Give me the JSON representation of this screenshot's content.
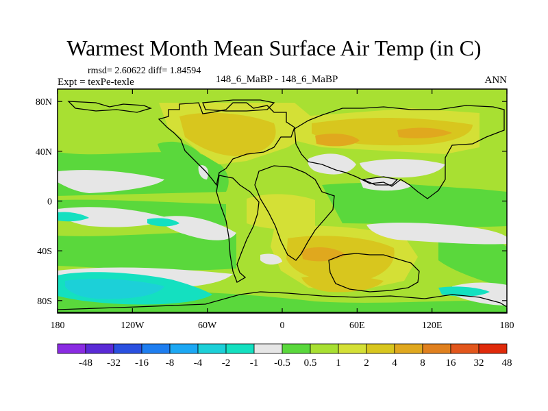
{
  "title": "Warmest Month Mean Surface Air Temp (in C)",
  "stats": "rmsd= 2.60622 diff= 1.84594",
  "expt": "Expt = texPe-texle",
  "subtitle": "148_6_MaBP - 148_6_MaBP",
  "season": "ANN",
  "map": {
    "x_ticks": [
      {
        "lon": -180,
        "label": "180"
      },
      {
        "lon": -120,
        "label": "120W"
      },
      {
        "lon": -60,
        "label": "60W"
      },
      {
        "lon": 0,
        "label": "0"
      },
      {
        "lon": 60,
        "label": "60E"
      },
      {
        "lon": 120,
        "label": "120E"
      },
      {
        "lon": 180,
        "label": "180"
      }
    ],
    "y_ticks": [
      {
        "lat": 80,
        "label": "80N"
      },
      {
        "lat": 40,
        "label": "40N"
      },
      {
        "lat": 0,
        "label": "0"
      },
      {
        "lat": -40,
        "label": "40S"
      },
      {
        "lat": -80,
        "label": "80S"
      }
    ],
    "lon_range": [
      -180,
      180
    ],
    "lat_range": [
      -90,
      90
    ]
  },
  "colorbar": {
    "colors": [
      "#8a2be2",
      "#5a2ad6",
      "#2a50e0",
      "#1e7ef0",
      "#1ca8f4",
      "#1cd0d8",
      "#14e0c0",
      "#e6e6e6",
      "#5ad83c",
      "#a8e032",
      "#d4e036",
      "#d8c61e",
      "#e0a81e",
      "#e0801e",
      "#e2561c",
      "#e02a0a"
    ],
    "labels": [
      "-48",
      "-32",
      "-16",
      "-8",
      "-4",
      "-2",
      "-1",
      "-0.5",
      "0.5",
      "1",
      "2",
      "4",
      "8",
      "16",
      "32",
      "48"
    ]
  }
}
